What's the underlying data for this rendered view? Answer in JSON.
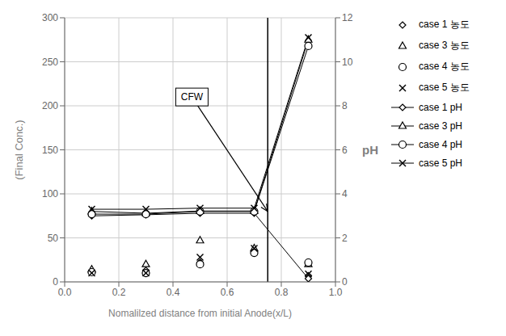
{
  "chart_data": {
    "type": "line",
    "xlabel": "Nomalilzed distance  from initial Anode(x/L)",
    "ylabel": "(Final Conc.)",
    "y2label": "pH",
    "x": [
      0.1,
      0.3,
      0.5,
      0.7,
      0.9
    ],
    "xlim": [
      0,
      1.0
    ],
    "xticks": [
      {
        "value": 0,
        "label": "0.0"
      },
      0.2,
      0.4,
      0.6,
      0.8,
      {
        "value": 1.0,
        "label": "1.0"
      }
    ],
    "ylim": [
      0,
      300
    ],
    "yticks": [
      0,
      50,
      100,
      150,
      200,
      250,
      300
    ],
    "y2lim": [
      0,
      12
    ],
    "y2ticks": [
      0,
      2,
      4,
      6,
      8,
      10,
      12
    ],
    "grid": true,
    "legend": "right",
    "color": "black",
    "series": [
      {
        "name": "case 1 농도",
        "type": "scatter",
        "marker": "diamond",
        "values": [
          12,
          13,
          22,
          35,
          7
        ]
      },
      {
        "name": "case 3 농도",
        "type": "scatter",
        "marker": "triangle",
        "values": [
          14,
          20,
          47,
          38,
          20
        ]
      },
      {
        "name": "case 4 농도",
        "type": "scatter",
        "marker": "circle",
        "values": [
          11,
          10,
          20,
          33,
          22
        ]
      },
      {
        "name": "case 5 농도",
        "type": "scatter",
        "marker": "x",
        "values": [
          10,
          10,
          28,
          38,
          9
        ]
      },
      {
        "name": "case 1 pH",
        "type": "line",
        "axis": "y2",
        "marker": "diamond",
        "values": [
          3.0,
          3.05,
          3.12,
          3.12,
          0.15
        ]
      },
      {
        "name": "case 3 pH",
        "type": "line",
        "axis": "y2",
        "marker": "triangle",
        "values": [
          3.2,
          3.12,
          3.22,
          3.22,
          11.0
        ]
      },
      {
        "name": "case 4 pH",
        "type": "line",
        "axis": "y2",
        "marker": "circle",
        "values": [
          3.08,
          3.08,
          3.2,
          3.2,
          10.72
        ]
      },
      {
        "name": "case 5 pH",
        "type": "line",
        "axis": "y2",
        "marker": "x",
        "values": [
          3.3,
          3.3,
          3.35,
          3.35,
          11.1
        ]
      }
    ],
    "vlines": [
      0.75
    ],
    "annotations": [
      {
        "text": "CFW",
        "x": 0.47,
        "y": 210,
        "arrow_x": 0.75,
        "arrow_y": 80
      }
    ]
  }
}
